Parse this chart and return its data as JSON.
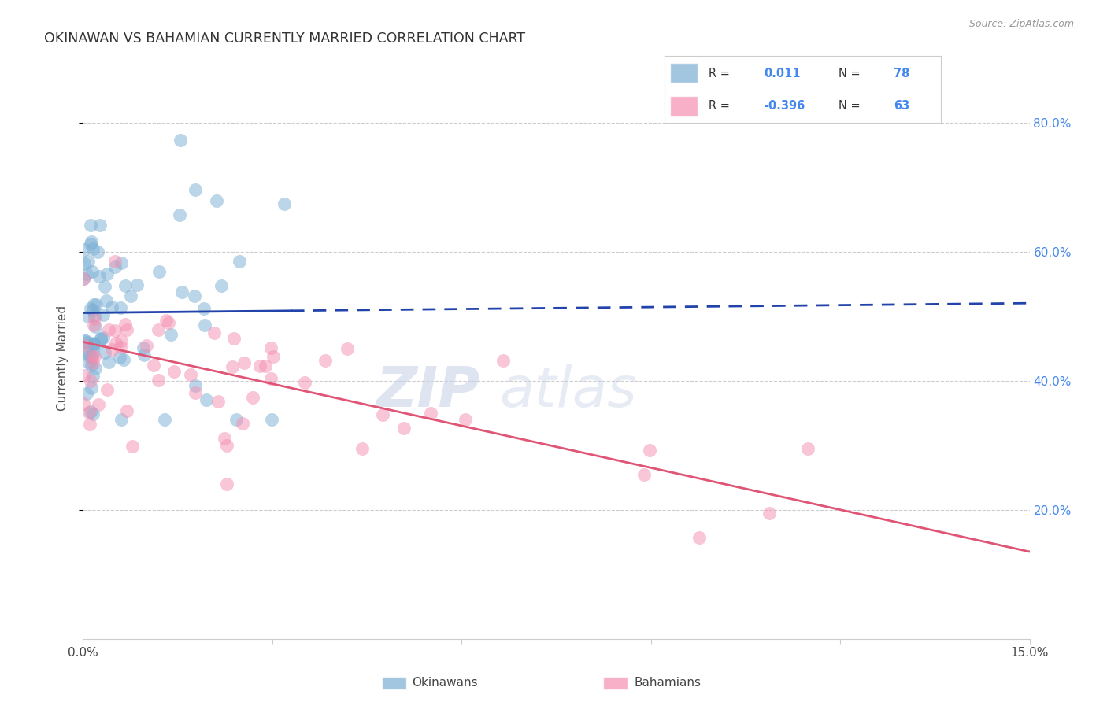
{
  "title": "OKINAWAN VS BAHAMIAN CURRENTLY MARRIED CORRELATION CHART",
  "source": "Source: ZipAtlas.com",
  "ylabel": "Currently Married",
  "xlim": [
    0.0,
    15.0
  ],
  "ylim": [
    0.0,
    87.0
  ],
  "ytick_vals": [
    20.0,
    40.0,
    60.0,
    80.0
  ],
  "xtick_vals": [
    0.0,
    3.0,
    6.0,
    9.0,
    12.0,
    15.0
  ],
  "legend_r1": "R = ",
  "legend_v1": "0.011",
  "legend_n1_label": "N = ",
  "legend_n1": "78",
  "legend_r2": "R = ",
  "legend_v2": "-0.396",
  "legend_n2": "63",
  "blue_color": "#7BAFD4",
  "pink_color": "#F48FB1",
  "trend_blue_color": "#2244AA",
  "trend_pink_color": "#E05575",
  "grid_color": "#CCCCCC",
  "right_ytick_color": "#4488EE",
  "title_color": "#333333",
  "source_color": "#999999",
  "ylabel_color": "#555555",
  "watermark_zip_color": "#C8D4E8",
  "watermark_atlas_color": "#C8D4E8",
  "blue_trend_y_at_0": 50.5,
  "blue_trend_y_at_15": 52.0,
  "pink_trend_y_at_0": 46.0,
  "pink_trend_y_at_15": 13.5,
  "blue_solid_end_x": 3.3,
  "n_blue": 78,
  "n_pink": 63
}
